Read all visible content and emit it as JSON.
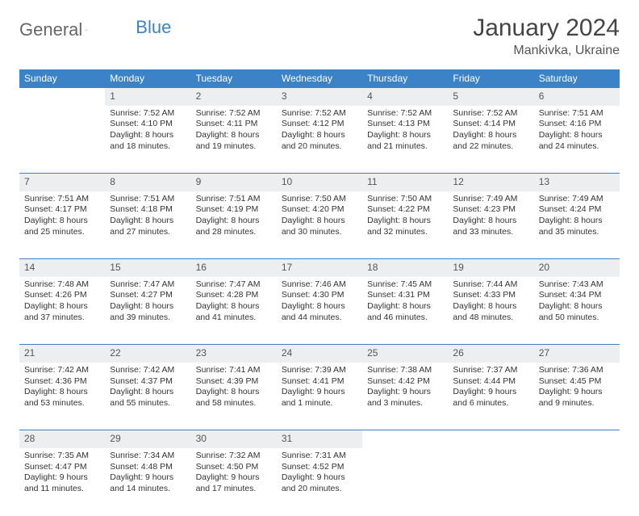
{
  "brand": {
    "part1": "General",
    "part2": "Blue",
    "part1_color": "#666666",
    "part2_color": "#3b82c7"
  },
  "title": "January 2024",
  "location": "Mankivka, Ukraine",
  "colors": {
    "header_bg": "#3b82c7",
    "header_fg": "#ffffff",
    "daynum_bg": "#eceef0",
    "rule": "#3b82c7",
    "text": "#333333"
  },
  "day_names": [
    "Sunday",
    "Monday",
    "Tuesday",
    "Wednesday",
    "Thursday",
    "Friday",
    "Saturday"
  ],
  "weeks": [
    [
      null,
      {
        "n": "1",
        "sr": "7:52 AM",
        "ss": "4:10 PM",
        "dl": "8 hours and 18 minutes."
      },
      {
        "n": "2",
        "sr": "7:52 AM",
        "ss": "4:11 PM",
        "dl": "8 hours and 19 minutes."
      },
      {
        "n": "3",
        "sr": "7:52 AM",
        "ss": "4:12 PM",
        "dl": "8 hours and 20 minutes."
      },
      {
        "n": "4",
        "sr": "7:52 AM",
        "ss": "4:13 PM",
        "dl": "8 hours and 21 minutes."
      },
      {
        "n": "5",
        "sr": "7:52 AM",
        "ss": "4:14 PM",
        "dl": "8 hours and 22 minutes."
      },
      {
        "n": "6",
        "sr": "7:51 AM",
        "ss": "4:16 PM",
        "dl": "8 hours and 24 minutes."
      }
    ],
    [
      {
        "n": "7",
        "sr": "7:51 AM",
        "ss": "4:17 PM",
        "dl": "8 hours and 25 minutes."
      },
      {
        "n": "8",
        "sr": "7:51 AM",
        "ss": "4:18 PM",
        "dl": "8 hours and 27 minutes."
      },
      {
        "n": "9",
        "sr": "7:51 AM",
        "ss": "4:19 PM",
        "dl": "8 hours and 28 minutes."
      },
      {
        "n": "10",
        "sr": "7:50 AM",
        "ss": "4:20 PM",
        "dl": "8 hours and 30 minutes."
      },
      {
        "n": "11",
        "sr": "7:50 AM",
        "ss": "4:22 PM",
        "dl": "8 hours and 32 minutes."
      },
      {
        "n": "12",
        "sr": "7:49 AM",
        "ss": "4:23 PM",
        "dl": "8 hours and 33 minutes."
      },
      {
        "n": "13",
        "sr": "7:49 AM",
        "ss": "4:24 PM",
        "dl": "8 hours and 35 minutes."
      }
    ],
    [
      {
        "n": "14",
        "sr": "7:48 AM",
        "ss": "4:26 PM",
        "dl": "8 hours and 37 minutes."
      },
      {
        "n": "15",
        "sr": "7:47 AM",
        "ss": "4:27 PM",
        "dl": "8 hours and 39 minutes."
      },
      {
        "n": "16",
        "sr": "7:47 AM",
        "ss": "4:28 PM",
        "dl": "8 hours and 41 minutes."
      },
      {
        "n": "17",
        "sr": "7:46 AM",
        "ss": "4:30 PM",
        "dl": "8 hours and 44 minutes."
      },
      {
        "n": "18",
        "sr": "7:45 AM",
        "ss": "4:31 PM",
        "dl": "8 hours and 46 minutes."
      },
      {
        "n": "19",
        "sr": "7:44 AM",
        "ss": "4:33 PM",
        "dl": "8 hours and 48 minutes."
      },
      {
        "n": "20",
        "sr": "7:43 AM",
        "ss": "4:34 PM",
        "dl": "8 hours and 50 minutes."
      }
    ],
    [
      {
        "n": "21",
        "sr": "7:42 AM",
        "ss": "4:36 PM",
        "dl": "8 hours and 53 minutes."
      },
      {
        "n": "22",
        "sr": "7:42 AM",
        "ss": "4:37 PM",
        "dl": "8 hours and 55 minutes."
      },
      {
        "n": "23",
        "sr": "7:41 AM",
        "ss": "4:39 PM",
        "dl": "8 hours and 58 minutes."
      },
      {
        "n": "24",
        "sr": "7:39 AM",
        "ss": "4:41 PM",
        "dl": "9 hours and 1 minute."
      },
      {
        "n": "25",
        "sr": "7:38 AM",
        "ss": "4:42 PM",
        "dl": "9 hours and 3 minutes."
      },
      {
        "n": "26",
        "sr": "7:37 AM",
        "ss": "4:44 PM",
        "dl": "9 hours and 6 minutes."
      },
      {
        "n": "27",
        "sr": "7:36 AM",
        "ss": "4:45 PM",
        "dl": "9 hours and 9 minutes."
      }
    ],
    [
      {
        "n": "28",
        "sr": "7:35 AM",
        "ss": "4:47 PM",
        "dl": "9 hours and 11 minutes."
      },
      {
        "n": "29",
        "sr": "7:34 AM",
        "ss": "4:48 PM",
        "dl": "9 hours and 14 minutes."
      },
      {
        "n": "30",
        "sr": "7:32 AM",
        "ss": "4:50 PM",
        "dl": "9 hours and 17 minutes."
      },
      {
        "n": "31",
        "sr": "7:31 AM",
        "ss": "4:52 PM",
        "dl": "9 hours and 20 minutes."
      },
      null,
      null,
      null
    ]
  ],
  "labels": {
    "sunrise": "Sunrise:",
    "sunset": "Sunset:",
    "daylight": "Daylight:"
  }
}
